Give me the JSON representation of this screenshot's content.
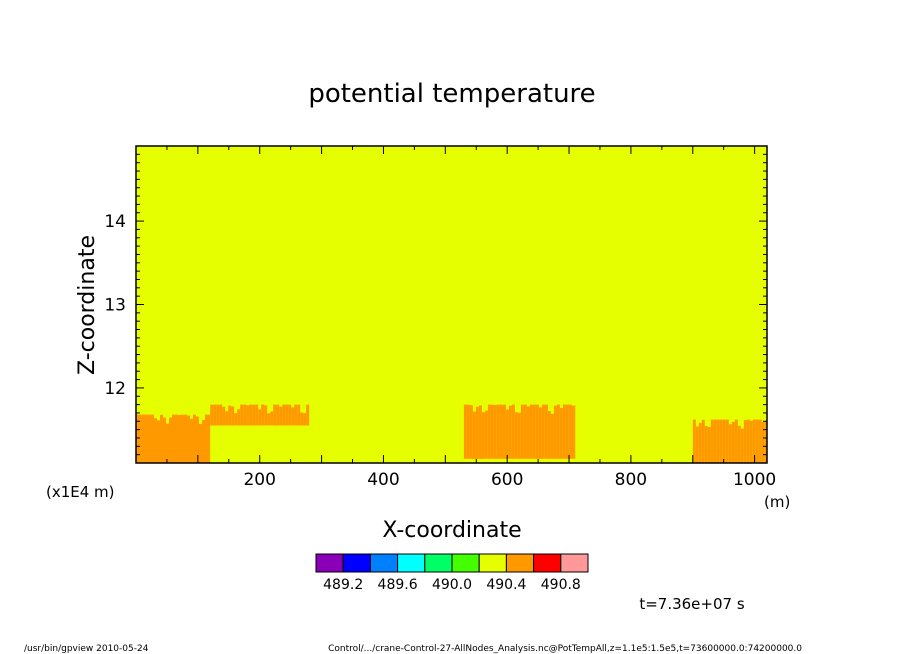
{
  "chart_data": {
    "type": "heatmap",
    "title": "potential temperature",
    "xlabel": "X-coordinate",
    "ylabel": "Z-coordinate",
    "x_unit": "(m)",
    "y_unit": "(x1E4 m)",
    "xlim": [
      0,
      1020
    ],
    "ylim": [
      11.1,
      14.9
    ],
    "x_ticks": [
      200,
      400,
      600,
      800,
      1000
    ],
    "y_ticks": [
      12,
      13,
      14
    ],
    "x_tick_labels": [
      "200",
      "400",
      "600",
      "800",
      "1000"
    ],
    "y_tick_labels": [
      "12",
      "13",
      "14"
    ],
    "background_value": 490.2,
    "field_regions": [
      {
        "value": 490.4,
        "x_start": 0,
        "x_end": 120,
        "z_base": 11.1,
        "z_top": 11.68
      },
      {
        "value": 490.4,
        "x_start": 120,
        "x_end": 280,
        "z_base": 11.55,
        "z_top": 11.8
      },
      {
        "value": 490.4,
        "x_start": 530,
        "x_end": 710,
        "z_base": 11.15,
        "z_top": 11.8
      },
      {
        "value": 490.4,
        "x_start": 900,
        "x_end": 1020,
        "z_base": 11.1,
        "z_top": 11.62
      }
    ],
    "colorbar": {
      "colors": [
        "#8a00b8",
        "#0000ff",
        "#0080ff",
        "#00ffff",
        "#00ff66",
        "#44ff00",
        "#e6ff00",
        "#ff9900",
        "#ff0000",
        "#ff9999"
      ],
      "labels": [
        "489.2",
        "489.6",
        "490.0",
        "490.4",
        "490.8"
      ],
      "boundaries": [
        489.0,
        489.2,
        489.4,
        489.6,
        489.8,
        490.0,
        490.2,
        490.4,
        490.6,
        490.8,
        491.0
      ]
    },
    "time_label": "t=7.36e+07 s"
  },
  "footer": {
    "program": "/usr/bin/gpview   2010-05-24",
    "source": "Control/.../crane-Control-27-AllNodes_Analysis.nc@PotTempAll,z=1.1e5:1.5e5,t=73600000.0:74200000.0"
  }
}
